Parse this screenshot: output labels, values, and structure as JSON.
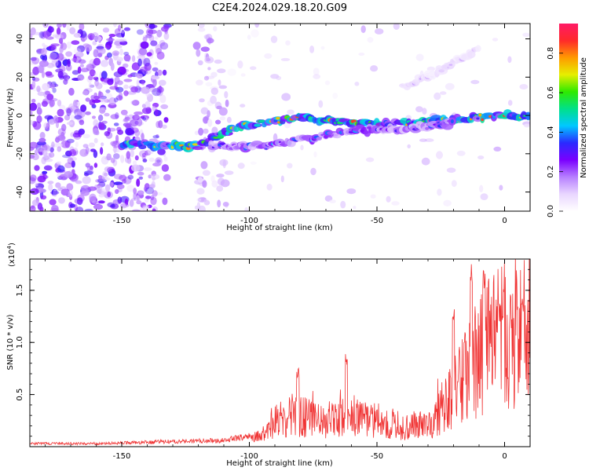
{
  "figure_title": "C2E4.2024.029.18.20.G09",
  "colors": {
    "line": "#f03333",
    "frame": "#000000",
    "colormap": [
      "#ffffff",
      "#e9d6ff",
      "#b780ff",
      "#7a00ff",
      "#2a2aff",
      "#00c8ff",
      "#00e08a",
      "#2eea00",
      "#e6ef00",
      "#ff9a00",
      "#ff2a2a",
      "#ff1a66"
    ]
  },
  "chart_data": [
    {
      "type": "heatmap",
      "xlabel": "Height of straight line (km)",
      "ylabel": "Frequency (Hz)",
      "xlim": [
        -186,
        10
      ],
      "ylim": [
        -50,
        48
      ],
      "xticks": [
        -150,
        -100,
        -50,
        0
      ],
      "xtick_labels": [
        "-150",
        "-100",
        "-50",
        "0"
      ],
      "yticks": [
        -40,
        -20,
        0,
        20,
        40
      ],
      "ytick_labels": [
        "-40",
        "-20",
        "0",
        "20",
        "40"
      ],
      "colorbar": {
        "label": "Normalized spectral amplitude",
        "range": [
          0,
          0.95
        ],
        "ticks": [
          0.0,
          0.2,
          0.4,
          0.6,
          0.8
        ],
        "tick_labels": [
          "0.0",
          "0.2",
          "0.4",
          "0.6",
          "0.8"
        ]
      },
      "features": [
        {
          "name": "main_trace",
          "points": [
            [
              -150,
              -15
            ],
            [
              -120,
              -16
            ],
            [
              -105,
              -6
            ],
            [
              -80,
              -1
            ],
            [
              -60,
              -4
            ],
            [
              -40,
              -4
            ],
            [
              -20,
              -2
            ],
            [
              0,
              0
            ],
            [
              10,
              -1
            ]
          ],
          "peak": 0.9
        },
        {
          "name": "lower_branch",
          "points": [
            [
              -115,
              -16
            ],
            [
              -95,
              -16
            ],
            [
              -80,
              -13
            ],
            [
              -60,
              -8
            ],
            [
              -40,
              -7
            ],
            [
              -20,
              -4
            ]
          ],
          "peak": 0.45
        },
        {
          "name": "upper_branch",
          "points": [
            [
              -40,
              15
            ],
            [
              -25,
              24
            ],
            [
              -10,
              35
            ]
          ],
          "peak": 0.15
        }
      ]
    },
    {
      "type": "line",
      "xlabel": "Height of straight line (km)",
      "ylabel": "SNR (10 * v/v)",
      "scale_label": "(x10",
      "scale_exponent": "4",
      "scale_suffix": ")",
      "xlim": [
        -186,
        10
      ],
      "ylim": [
        0,
        18000
      ],
      "xticks": [
        -150,
        -100,
        -50,
        0
      ],
      "xtick_labels": [
        "-150",
        "-100",
        "-50",
        "0"
      ],
      "yticks": [
        5000,
        10000,
        15000
      ],
      "ytick_labels": [
        "0.5",
        "1.0",
        "1.5"
      ],
      "series": [
        {
          "x": [
            -186,
            -160,
            -130,
            -110,
            -100,
            -90,
            -85,
            -80,
            -70,
            -60,
            -50,
            -40,
            -30,
            -20,
            -10,
            0,
            10
          ],
          "y": [
            300,
            300,
            500,
            600,
            1000,
            2500,
            3000,
            3000,
            2500,
            3000,
            2500,
            2000,
            2000,
            5000,
            9000,
            11000,
            11500
          ],
          "peaks": [
            [
              -81,
              7800
            ],
            [
              -62,
              9200
            ],
            [
              -20,
              14000
            ],
            [
              -13,
              18000
            ],
            [
              -8,
              17500
            ],
            [
              -2,
              14000
            ],
            [
              7,
              14800
            ]
          ]
        }
      ]
    }
  ]
}
